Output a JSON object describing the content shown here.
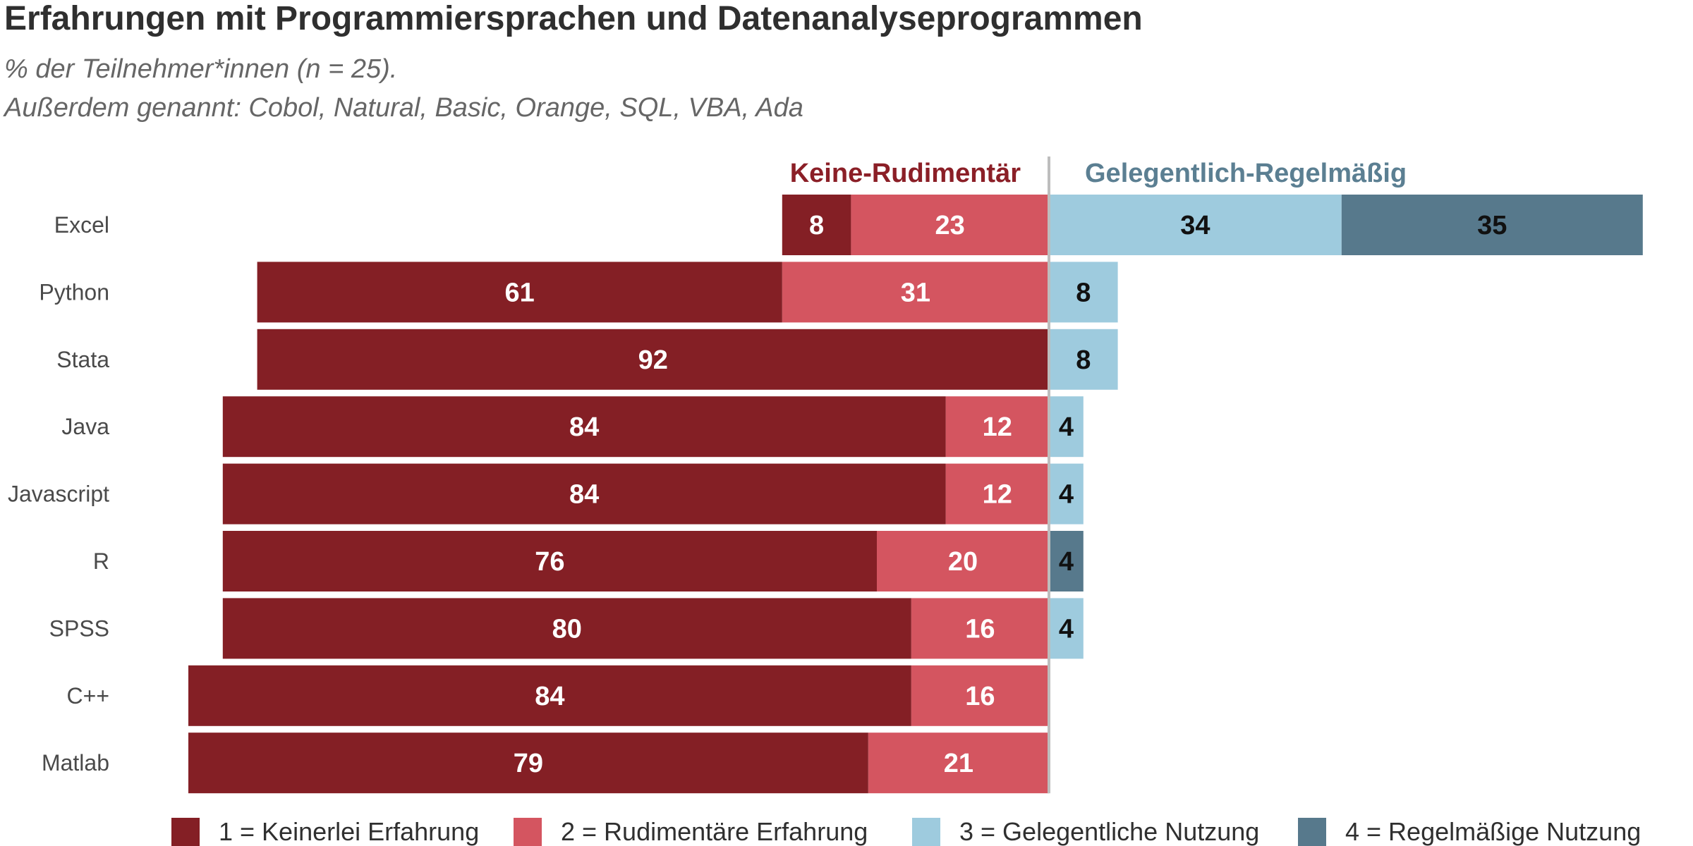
{
  "chart_data": {
    "type": "bar",
    "orientation": "horizontal",
    "stacked": "diverging",
    "title": "Erfahrungen mit Programmiersprachen und Datenanalyseprogrammen",
    "subtitle_lines": [
      "% der Teilnehmer*innen (n = 25).",
      "Außerdem genannt: Cobol, Natural, Basic, Orange, SQL, VBA, Ada"
    ],
    "group_labels": {
      "negative": "Keine-Rudimentär",
      "positive": "Gelegentlich-Regelmäßig"
    },
    "categories": [
      "Excel",
      "Python",
      "Stata",
      "Java",
      "Javascript",
      "R",
      "SPSS",
      "C++",
      "Matlab"
    ],
    "series": [
      {
        "name": "1 = Keinerlei Erfahrung",
        "side": "negative",
        "color": "#841f25",
        "label_color": "#ffffff",
        "values": [
          8,
          61,
          92,
          84,
          84,
          76,
          80,
          84,
          79
        ]
      },
      {
        "name": "2 = Rudimentäre Erfahrung",
        "side": "negative",
        "color": "#d45560",
        "label_color": "#ffffff",
        "values": [
          23,
          31,
          0,
          12,
          12,
          20,
          16,
          16,
          21
        ]
      },
      {
        "name": "3 = Gelegentliche Nutzung",
        "side": "positive",
        "color": "#9ecbde",
        "label_color": "#111111",
        "values": [
          34,
          8,
          8,
          4,
          4,
          0,
          4,
          0,
          0
        ]
      },
      {
        "name": "4 = Regelmäßige Nutzung",
        "side": "positive",
        "color": "#57798c",
        "label_color": "#111111",
        "values": [
          35,
          0,
          0,
          0,
          0,
          4,
          0,
          0,
          0
        ]
      }
    ],
    "colors": {
      "negative_group": "#8b1f27",
      "positive_group": "#5b7f92",
      "center_line": "#bdbdbd"
    },
    "legend_position": "bottom",
    "grid": false
  }
}
